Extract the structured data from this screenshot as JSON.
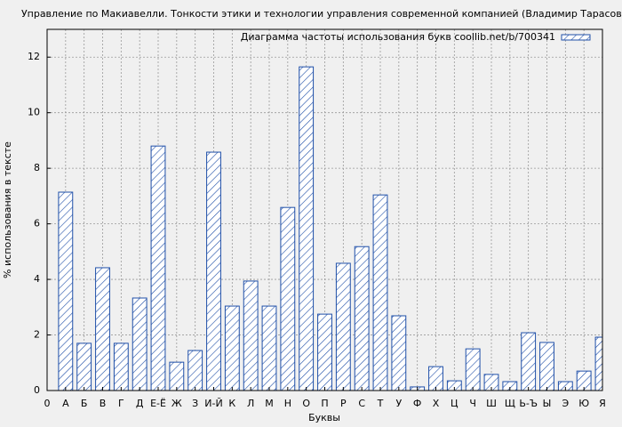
{
  "chart_data": {
    "type": "bar",
    "title": "Управление по Макиавелли. Тонкости этики и технологии управления современной компанией (Владимир Тарасов)",
    "x_label": "Буквы",
    "y_label": "% использования в тексте",
    "x": [
      1,
      2,
      3,
      4,
      5,
      6,
      7,
      8,
      9,
      10,
      11,
      12,
      13,
      14,
      15,
      16,
      17,
      18,
      19,
      20,
      21,
      22,
      23,
      24,
      25,
      26,
      27,
      28,
      29,
      30
    ],
    "series": [
      {
        "name": "Диаграмма частоты использования букв coollib.net/b/700341",
        "color": "#1f4fa8",
        "values": [
          7.14,
          1.7,
          4.42,
          1.7,
          3.33,
          8.8,
          1.02,
          1.44,
          8.58,
          3.04,
          3.94,
          3.04,
          6.59,
          11.65,
          2.75,
          4.58,
          5.18,
          7.04,
          2.69,
          0.13,
          0.86,
          0.35,
          1.5,
          0.58,
          0.32,
          2.08,
          1.73,
          0.32,
          0.7,
          1.92
        ]
      }
    ],
    "xlim": [
      0,
      30
    ],
    "xticks": [
      0,
      {
        "value": 1,
        "label": "А"
      },
      {
        "value": 2,
        "label": "Б"
      },
      {
        "value": 3,
        "label": "В"
      },
      {
        "value": 4,
        "label": "Г"
      },
      {
        "value": 5,
        "label": "Д"
      },
      {
        "value": 6,
        "label": "Е-Ё"
      },
      {
        "value": 7,
        "label": "Ж"
      },
      {
        "value": 8,
        "label": "З"
      },
      {
        "value": 9,
        "label": "И-Й"
      },
      {
        "value": 10,
        "label": "К"
      },
      {
        "value": 11,
        "label": "Л"
      },
      {
        "value": 12,
        "label": "М"
      },
      {
        "value": 13,
        "label": "Н"
      },
      {
        "value": 14,
        "label": "О"
      },
      {
        "value": 15,
        "label": "П"
      },
      {
        "value": 16,
        "label": "Р"
      },
      {
        "value": 17,
        "label": "С"
      },
      {
        "value": 18,
        "label": "Т"
      },
      {
        "value": 19,
        "label": "У"
      },
      {
        "value": 20,
        "label": "Ф"
      },
      {
        "value": 21,
        "label": "Х"
      },
      {
        "value": 22,
        "label": "Ц"
      },
      {
        "value": 23,
        "label": "Ч"
      },
      {
        "value": 24,
        "label": "Ш"
      },
      {
        "value": 25,
        "label": "Щ"
      },
      {
        "value": 26,
        "label": "Ь-Ъ"
      },
      {
        "value": 27,
        "label": "Ы"
      },
      {
        "value": 28,
        "label": "Э"
      },
      {
        "value": 29,
        "label": "Ю"
      },
      {
        "value": 30,
        "label": "Я"
      }
    ],
    "ylim": [
      0,
      13
    ],
    "yticks": [
      0,
      2,
      4,
      6,
      8,
      10,
      12
    ],
    "grid": true,
    "legend": "top-right"
  }
}
